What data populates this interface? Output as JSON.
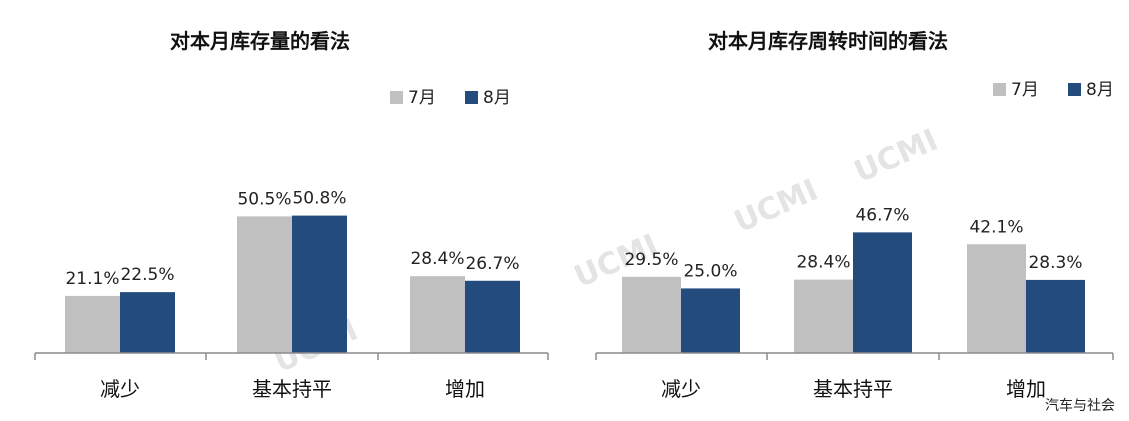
{
  "watermark": "UCMI",
  "source_tag": "汽车与社会",
  "colors": {
    "jul": "#c0c0c0",
    "aug": "#234b7e",
    "axis": "#8c8c8c"
  },
  "chart_data": [
    {
      "type": "bar",
      "title": "对本月库存量的看法",
      "categories": [
        "减少",
        "基本持平",
        "增加"
      ],
      "series": [
        {
          "name": "7月",
          "values": [
            21.1,
            50.5,
            28.4
          ],
          "labels": [
            "21.1%",
            "50.5%",
            "28.4%"
          ]
        },
        {
          "name": "8月",
          "values": [
            22.5,
            50.8,
            26.7
          ],
          "labels": [
            "22.5%",
            "50.8%",
            "26.7%"
          ]
        }
      ],
      "ylim": [
        0,
        60
      ],
      "legend": "top-right",
      "grid": false
    },
    {
      "type": "bar",
      "title": "对本月库存周转时间的看法",
      "categories": [
        "减少",
        "基本持平",
        "增加"
      ],
      "series": [
        {
          "name": "7月",
          "values": [
            29.5,
            28.4,
            42.1
          ],
          "labels": [
            "29.5%",
            "28.4%",
            "42.1%"
          ]
        },
        {
          "name": "8月",
          "values": [
            25.0,
            46.7,
            28.3
          ],
          "labels": [
            "25.0%",
            "46.7%",
            "28.3%"
          ]
        }
      ],
      "ylim": [
        0,
        60
      ],
      "legend": "top-right",
      "grid": false
    }
  ]
}
